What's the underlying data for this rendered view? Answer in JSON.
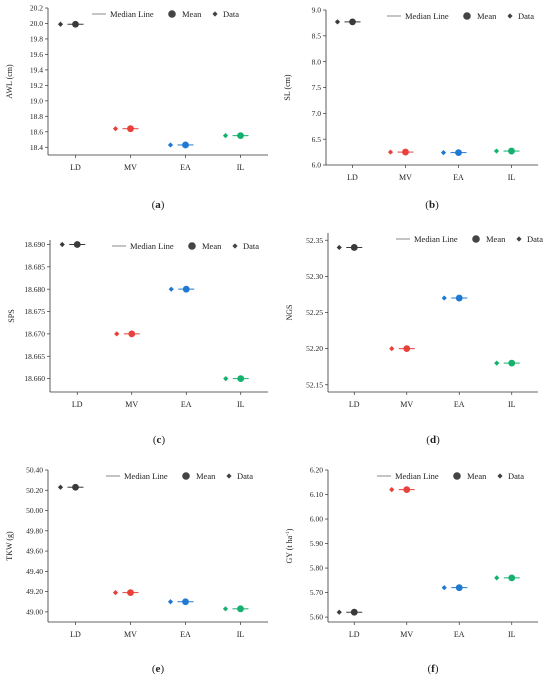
{
  "legend": {
    "median_label": "Median Line",
    "mean_label": "Mean",
    "data_label": "Data"
  },
  "colors": {
    "LD": "#3a3a3a",
    "MV": "#e8413c",
    "EA": "#1f78d1",
    "IL": "#14b06e",
    "median_line": "#888888"
  },
  "chart_data": [
    {
      "type": "scatter",
      "panel": "(a)",
      "panel_letter": "a",
      "ylabel": "AWL (cm)",
      "categories": [
        "LD",
        "MV",
        "EA",
        "IL"
      ],
      "values": [
        19.99,
        18.64,
        18.43,
        18.55
      ],
      "ylim": [
        18.3,
        20.2
      ],
      "yticks": [
        "18.4",
        "18.6",
        "18.8",
        "19.0",
        "19.2",
        "19.4",
        "19.6",
        "19.8",
        "20.0",
        "20.2"
      ],
      "legend_position": "top-center",
      "grid": false
    },
    {
      "type": "scatter",
      "panel": "(b)",
      "panel_letter": "b",
      "ylabel": "SL (cm)",
      "categories": [
        "LD",
        "MV",
        "EA",
        "IL"
      ],
      "values": [
        8.77,
        6.25,
        6.24,
        6.27
      ],
      "ylim": [
        6.0,
        9.0
      ],
      "yticks": [
        "6.0",
        "6.5",
        "7.0",
        "7.5",
        "8.0",
        "8.5",
        "9.0"
      ],
      "legend_position": "top-center",
      "grid": false
    },
    {
      "type": "scatter",
      "panel": "(c)",
      "panel_letter": "c",
      "ylabel": "SPS",
      "categories": [
        "LD",
        "MV",
        "EA",
        "IL"
      ],
      "values": [
        18.69,
        18.67,
        18.68,
        18.66
      ],
      "ylim": [
        18.657,
        18.691
      ],
      "yticks": [
        "18.660",
        "18.665",
        "18.670",
        "18.675",
        "18.680",
        "18.685",
        "18.690"
      ],
      "legend_position": "top-center",
      "grid": false
    },
    {
      "type": "scatter",
      "panel": "(d)",
      "panel_letter": "d",
      "ylabel": "NGS",
      "categories": [
        "LD",
        "MV",
        "EA",
        "IL"
      ],
      "values": [
        52.34,
        52.2,
        52.27,
        52.18
      ],
      "ylim": [
        52.14,
        52.36
      ],
      "yticks": [
        "52.15",
        "52.20",
        "52.25",
        "52.30",
        "52.35"
      ],
      "legend_position": "top-center",
      "grid": false
    },
    {
      "type": "scatter",
      "panel": "(e)",
      "panel_letter": "e",
      "ylabel": "TKW (g)",
      "categories": [
        "LD",
        "MV",
        "EA",
        "IL"
      ],
      "values": [
        50.23,
        49.19,
        49.1,
        49.03
      ],
      "ylim": [
        48.9,
        50.4
      ],
      "yticks": [
        "49.00",
        "49.20",
        "49.40",
        "49.60",
        "49.80",
        "50.00",
        "50.20",
        "50.40"
      ],
      "legend_position": "top-center",
      "grid": false
    },
    {
      "type": "scatter",
      "panel": "(f)",
      "panel_letter": "f",
      "ylabel": "GY (t ha",
      "ylabel_sup": "-1",
      "ylabel_end": ")",
      "categories": [
        "LD",
        "MV",
        "EA",
        "IL"
      ],
      "values": [
        5.62,
        6.12,
        5.72,
        5.76
      ],
      "ylim": [
        5.58,
        6.2
      ],
      "yticks": [
        "5.60",
        "5.70",
        "5.80",
        "5.90",
        "6.00",
        "6.10",
        "6.20"
      ],
      "legend_position": "top-center",
      "grid": false
    }
  ]
}
